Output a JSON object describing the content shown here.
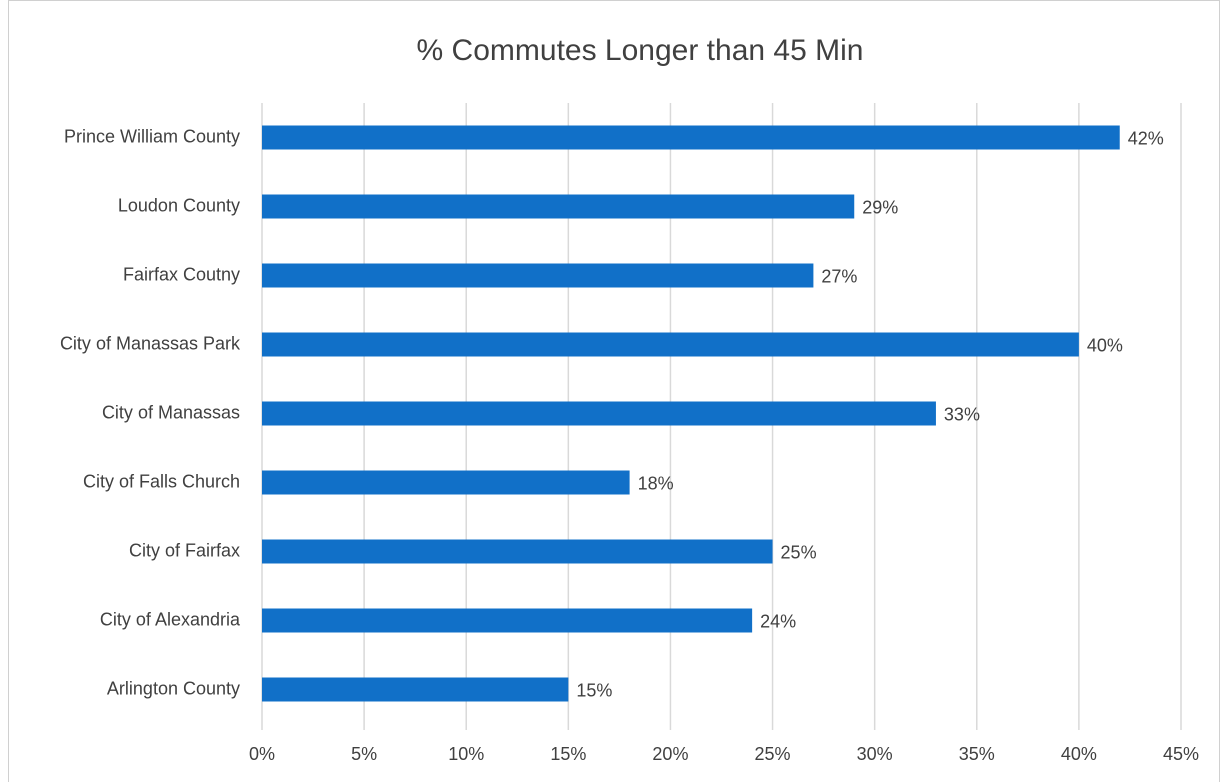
{
  "chart_data": {
    "type": "bar",
    "orientation": "horizontal",
    "title": "% Commutes Longer than 45 Min",
    "categories": [
      "Prince William County",
      "Loudon County",
      "Fairfax Coutny",
      "City of Manassas Park",
      "City of Manassas",
      "City of Falls Church",
      "City of Fairfax",
      "City of Alexandria",
      "Arlington County"
    ],
    "values": [
      42,
      29,
      27,
      40,
      33,
      18,
      25,
      24,
      15
    ],
    "value_labels": [
      "42%",
      "29%",
      "27%",
      "40%",
      "33%",
      "18%",
      "25%",
      "24%",
      "15%"
    ],
    "color": "#1170c8",
    "xlim": [
      0,
      45
    ],
    "xticks": [
      {
        "value": 0,
        "label": "0%"
      },
      {
        "value": 5,
        "label": "5%"
      },
      {
        "value": 10,
        "label": "10%"
      },
      {
        "value": 15,
        "label": "15%"
      },
      {
        "value": 20,
        "label": "20%"
      },
      {
        "value": 25,
        "label": "25%"
      },
      {
        "value": 30,
        "label": "30%"
      },
      {
        "value": 35,
        "label": "35%"
      },
      {
        "value": 40,
        "label": "40%"
      },
      {
        "value": 45,
        "label": "45%"
      }
    ],
    "grid": true
  }
}
